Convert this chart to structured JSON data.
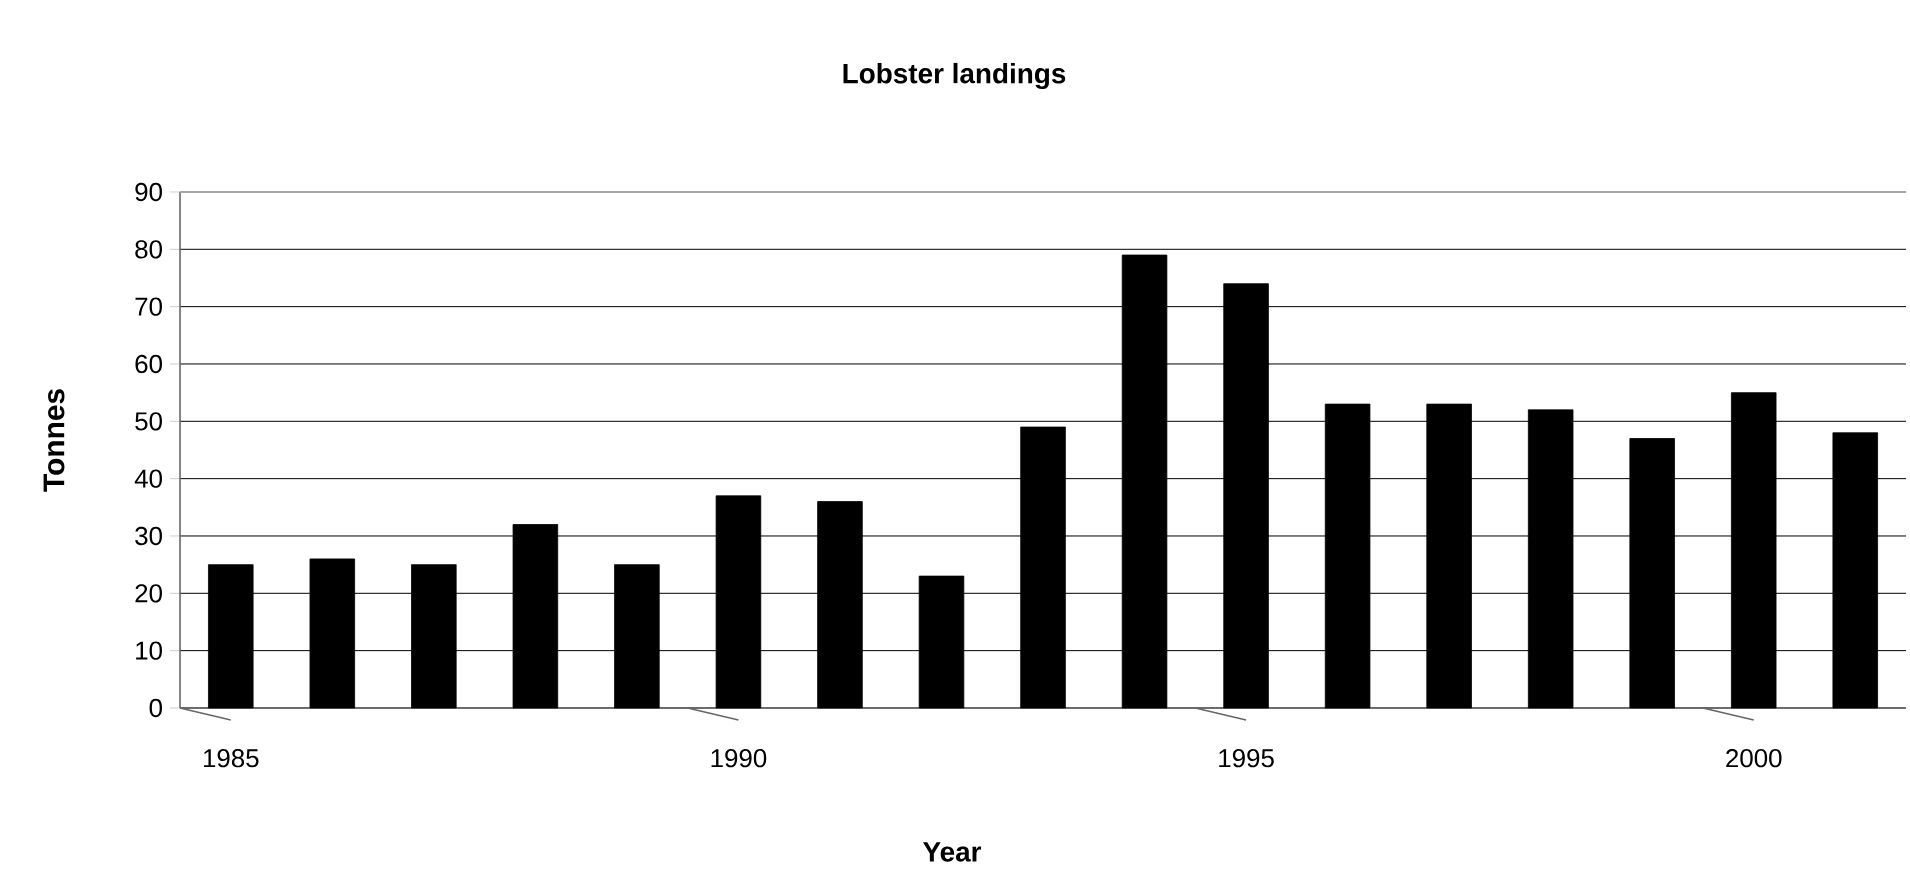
{
  "chart_data": {
    "type": "bar",
    "title": "Lobster landings",
    "xlabel": "Year",
    "ylabel": "Tonnes",
    "categories": [
      "1985",
      null,
      null,
      null,
      null,
      "1990",
      null,
      null,
      null,
      null,
      "1995",
      null,
      null,
      null,
      null,
      "2000",
      null
    ],
    "values": [
      25,
      26,
      25,
      32,
      25,
      37,
      36,
      23,
      49,
      79,
      74,
      53,
      53,
      52,
      47,
      55,
      48
    ],
    "color": "#000000",
    "ylim": [
      0,
      90
    ],
    "yticks": [
      0,
      10,
      20,
      30,
      40,
      50,
      60,
      70,
      80,
      90
    ],
    "grid": "y"
  }
}
